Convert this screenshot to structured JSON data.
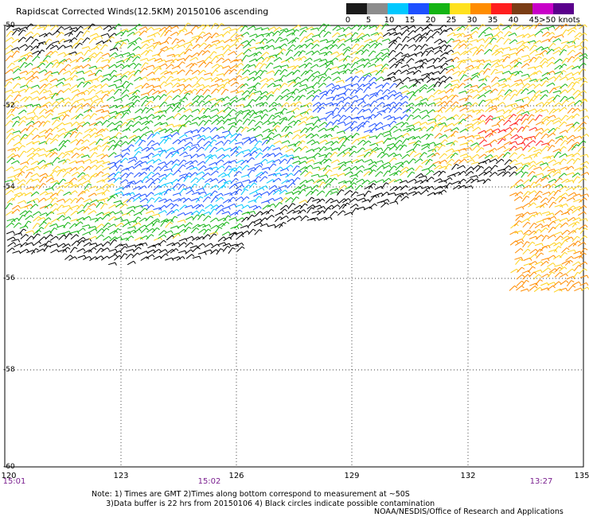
{
  "title": "Rapidscat Corrected Winds(12.5KM) 20150106 ascending",
  "legend": {
    "labels": [
      "0",
      "5",
      "10",
      "15",
      "20",
      "25",
      "30",
      "35",
      "40",
      "45",
      ">50 knots"
    ],
    "colors": [
      "#1a1a1a",
      "#8c8c8c",
      "#00c8ff",
      "#1e50ff",
      "#14b414",
      "#ffe11e",
      "#ff8c00",
      "#ff1e1e",
      "#7a3c14",
      "#c800c8",
      "#5a008c"
    ]
  },
  "axes": {
    "y_labels": [
      "-50",
      "-52",
      "-54",
      "-56",
      "-58",
      "-60"
    ],
    "x_labels": [
      "120",
      "123",
      "126",
      "129",
      "132",
      "135"
    ],
    "time_labels": [
      "15:01",
      "15:02",
      "13:27"
    ]
  },
  "note": "Note: 1) Times are GMT 2)Times along bottom correspond to measurement at ~50S\n      3)Data buffer is 22 hrs from 20150106 4) Black circles indicate possible contamination",
  "credit": "NOAA/NESDIS/Office of Research and Applications",
  "wind_colors": {
    "calm": "#000000",
    "blue": "#1e50ff",
    "cyan": "#00c8ff",
    "green": "#14b414",
    "yellow": "#ffd21e",
    "orange": "#ff8c00",
    "red": "#ff1e1e"
  }
}
